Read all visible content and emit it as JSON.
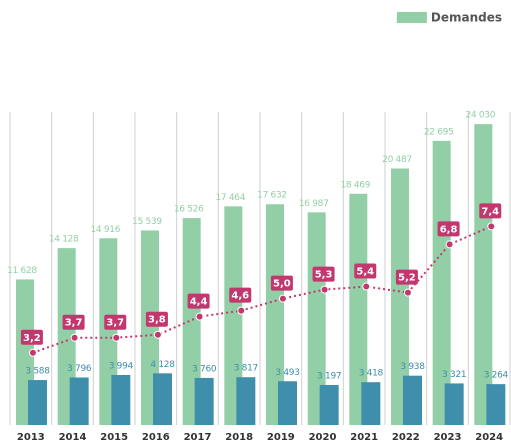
{
  "chart_data": {
    "type": "bar",
    "categories": [
      "2013",
      "2014",
      "2015",
      "2016",
      "2017",
      "2018",
      "2019",
      "2020",
      "2021",
      "2022",
      "2023",
      "2024"
    ],
    "series": [
      {
        "name": "Demandes",
        "color": "#92cfa6",
        "values": [
          11628,
          14128,
          14916,
          15539,
          16526,
          17464,
          17632,
          16987,
          18469,
          20487,
          22695,
          24030
        ],
        "value_labels": [
          "11 628",
          "14 128",
          "14 916",
          "15 539",
          "16 526",
          "17 464",
          "17 632",
          "16 987",
          "18 469",
          "20 487",
          "22 695",
          "24 030"
        ]
      },
      {
        "color": "#3e8eac",
        "values": [
          3588,
          3796,
          3994,
          4128,
          3760,
          3817,
          3493,
          3197,
          3418,
          3938,
          3321,
          3264
        ],
        "value_labels": [
          "3 588",
          "3 796",
          "3 994",
          "4 128",
          "3 760",
          "3 817",
          "3 493",
          "3 197",
          "3 418",
          "3 938",
          "3 321",
          "3 264"
        ]
      },
      {
        "type": "line",
        "axis": "y2",
        "color": "#c2386e",
        "values": [
          3.2,
          3.7,
          3.7,
          3.8,
          4.4,
          4.6,
          5.0,
          5.3,
          5.4,
          5.2,
          6.8,
          7.4
        ],
        "value_labels": [
          "3,2",
          "3,7",
          "3,7",
          "3,8",
          "4,4",
          "4,6",
          "5,0",
          "5,3",
          "5,4",
          "5,2",
          "6,8",
          "7,4"
        ]
      }
    ],
    "ylim": [
      0,
      25000
    ],
    "y2lim": [
      0.8,
      11.2
    ],
    "legend": "top-right"
  }
}
